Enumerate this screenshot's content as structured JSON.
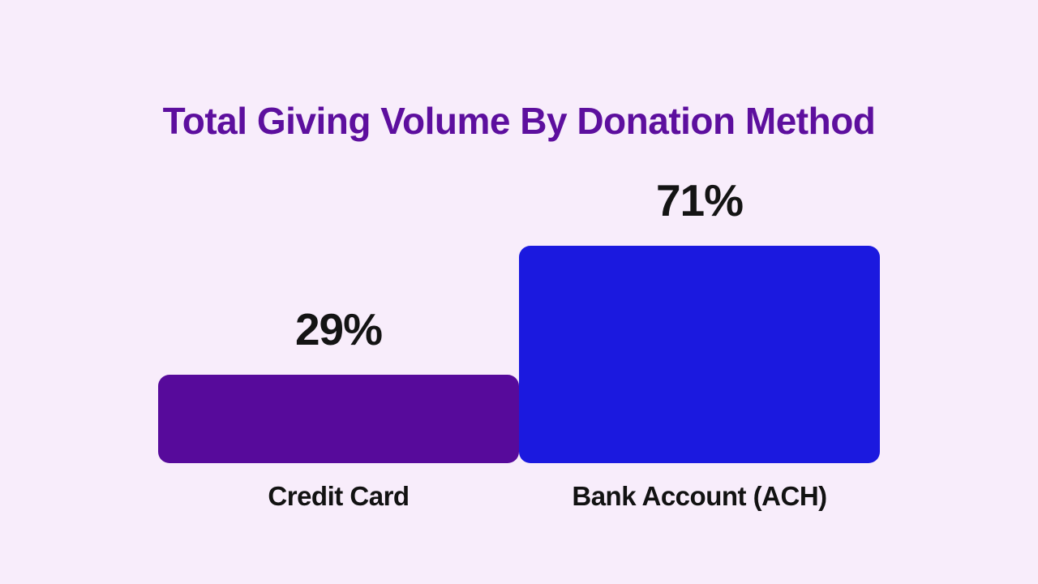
{
  "chart_data": {
    "type": "bar",
    "title": "Total Giving Volume By Donation Method",
    "categories": [
      "Credit Card",
      "Bank Account (ACH)"
    ],
    "values": [
      29,
      71
    ],
    "value_labels": [
      "29%",
      "71%"
    ],
    "unit": "%",
    "colors": [
      "#570A9B",
      "#1B19DF"
    ],
    "background_color": "#F8EDFB",
    "title_color": "#5D0F9E",
    "ylim": [
      0,
      100
    ],
    "grid": false,
    "legend": false,
    "value_label_position": "above-bar",
    "category_label_position": "below-bar"
  }
}
